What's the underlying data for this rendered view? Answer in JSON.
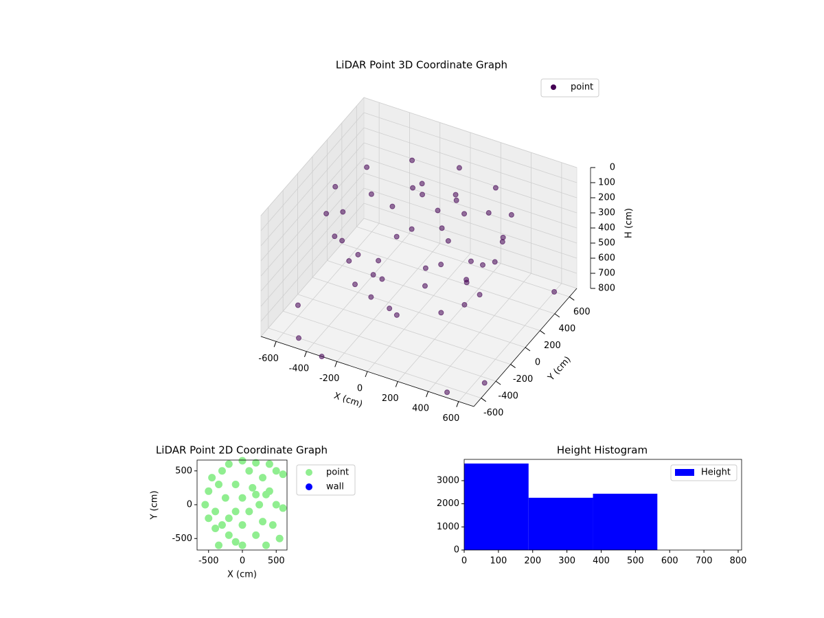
{
  "chart_data": [
    {
      "type": "scatter3d",
      "title": "LiDAR Point 3D Coordinate Graph",
      "xlabel": "X (cm)",
      "ylabel": "Y (cm)",
      "zlabel": "H (cm)",
      "xlim": [
        -700,
        700
      ],
      "ylim": [
        -700,
        700
      ],
      "zlim": [
        0,
        800
      ],
      "z_inverted": true,
      "xticks": [
        -600,
        -400,
        -200,
        0,
        200,
        400,
        600
      ],
      "yticks": [
        -600,
        -400,
        -200,
        0,
        200,
        400,
        600
      ],
      "zticks": [
        0,
        100,
        200,
        300,
        400,
        500,
        600,
        700,
        800
      ],
      "grid": true,
      "legend": "upper right",
      "series": [
        {
          "name": "point",
          "color": "#440154",
          "x": [
            550,
            476,
            275,
            0,
            -275,
            -476,
            -550,
            -476,
            -275,
            0,
            275,
            476,
            500,
            433,
            250,
            0,
            -250,
            -433,
            -500,
            -433,
            -250,
            0,
            250,
            433,
            100,
            200,
            -50,
            150,
            -150,
            50,
            250,
            -100,
            400,
            283,
            0,
            -283,
            -400,
            -283,
            0,
            283,
            300,
            0,
            -300,
            0,
            212,
            -212,
            -650,
            -500,
            600,
            650,
            -300,
            500
          ],
          "y": [
            0,
            275,
            476,
            550,
            476,
            275,
            0,
            -275,
            -476,
            -550,
            -476,
            -275,
            0,
            250,
            433,
            500,
            433,
            250,
            0,
            -250,
            -433,
            -500,
            -433,
            -250,
            50,
            -100,
            150,
            200,
            -50,
            -200,
            100,
            250,
            0,
            283,
            400,
            283,
            0,
            -283,
            -400,
            -283,
            0,
            300,
            0,
            -300,
            212,
            -212,
            -300,
            -600,
            600,
            -450,
            -700,
            -650
          ],
          "z": [
            150,
            150,
            150,
            150,
            150,
            150,
            150,
            150,
            150,
            150,
            150,
            150,
            300,
            300,
            300,
            300,
            300,
            300,
            300,
            300,
            300,
            300,
            300,
            300,
            120,
            120,
            120,
            120,
            120,
            120,
            120,
            120,
            550,
            550,
            550,
            550,
            550,
            550,
            550,
            550,
            650,
            650,
            650,
            650,
            650,
            650,
            800,
            800,
            800,
            800,
            800,
            800
          ]
        }
      ]
    },
    {
      "type": "scatter",
      "title": "LiDAR Point 2D Coordinate Graph",
      "xlabel": "X (cm)",
      "ylabel": "Y (cm)",
      "xlim": [
        -670,
        660
      ],
      "ylim": [
        -670,
        660
      ],
      "xticks": [
        -500,
        0,
        500
      ],
      "yticks": [
        -500,
        0,
        500
      ],
      "legend": "outside right",
      "series": [
        {
          "name": "point",
          "color": "#90ee90",
          "x": [
            -550,
            -500,
            -500,
            -450,
            -400,
            -350,
            -300,
            -300,
            -250,
            -200,
            -200,
            -100,
            -100,
            -100,
            0,
            0,
            0,
            0,
            100,
            100,
            150,
            200,
            200,
            250,
            300,
            300,
            350,
            350,
            400,
            450,
            500,
            500,
            550,
            600,
            600,
            -350,
            -400,
            -200,
            200,
            400
          ],
          "y": [
            0,
            -200,
            200,
            400,
            -100,
            300,
            500,
            -300,
            100,
            -450,
            600,
            -550,
            300,
            -100,
            650,
            100,
            -300,
            -600,
            500,
            -100,
            250,
            -450,
            620,
            0,
            -250,
            400,
            150,
            -600,
            600,
            -300,
            0,
            500,
            -500,
            450,
            -50,
            -600,
            -350,
            -200,
            150,
            200
          ]
        },
        {
          "name": "wall",
          "color": "#0000ff",
          "x": [],
          "y": []
        }
      ]
    },
    {
      "type": "histogram",
      "title": "Height Histogram",
      "xlim": [
        0,
        810
      ],
      "ylim": [
        0,
        3920
      ],
      "xticks": [
        0,
        100,
        200,
        300,
        400,
        500,
        600,
        700,
        800
      ],
      "yticks": [
        0,
        1000,
        2000,
        3000
      ],
      "legend": "upper right",
      "bins": [
        0,
        188,
        376,
        564
      ],
      "series": [
        {
          "name": "Height",
          "color": "#0000ff",
          "values": [
            3740,
            2260,
            2435
          ]
        }
      ]
    }
  ]
}
